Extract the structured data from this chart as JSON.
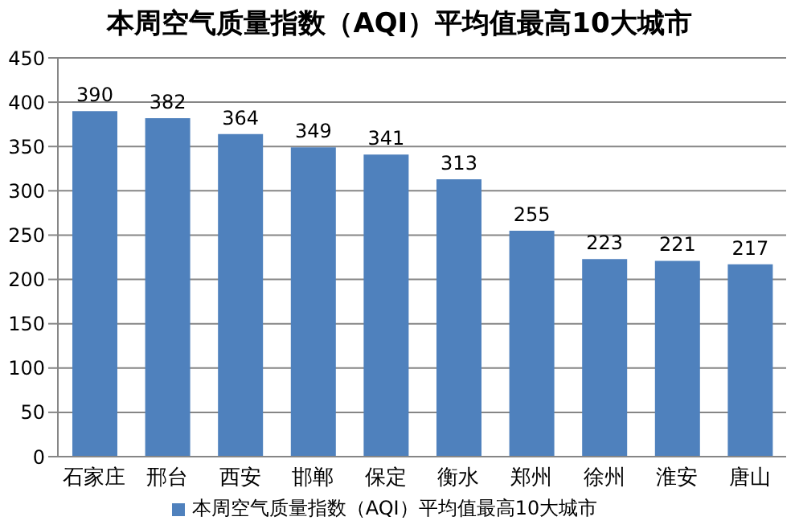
{
  "chart_data": {
    "type": "bar",
    "title": "本周空气质量指数（AQI）平均值最高10大城市",
    "categories": [
      "石家庄",
      "邢台",
      "西安",
      "邯郸",
      "保定",
      "衡水",
      "郑州",
      "徐州",
      "淮安",
      "唐山"
    ],
    "series": [
      {
        "name": "本周空气质量指数（AQI）平均值最高10大城市",
        "color": "#4f81bd",
        "values": [
          390,
          382,
          364,
          349,
          341,
          313,
          255,
          223,
          221,
          217
        ]
      }
    ],
    "ylim": [
      0,
      450
    ],
    "yticks": [
      0,
      50,
      100,
      150,
      200,
      250,
      300,
      350,
      400,
      450
    ],
    "grid": "y",
    "legend": "bottom",
    "data_labels": true
  }
}
